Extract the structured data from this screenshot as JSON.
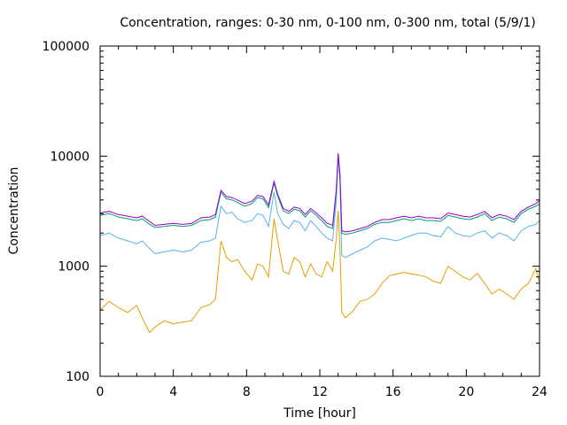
{
  "chart_data": {
    "type": "line",
    "title": "Concentration, ranges: 0-30 nm, 0-100 nm, 0-300 nm, total (5/9/1)",
    "xlabel": "Time [hour]",
    "ylabel": "Concentration",
    "xlim": [
      0,
      24
    ],
    "ylim": [
      100,
      100000
    ],
    "yscale": "log",
    "grid": false,
    "legend": "none",
    "x_ticks": [
      0,
      4,
      8,
      12,
      16,
      20,
      24
    ],
    "x_tick_labels": [
      "0",
      "4",
      "8",
      "12",
      "16",
      "20",
      "24"
    ],
    "y_ticks": [
      100,
      1000,
      10000,
      100000
    ],
    "y_tick_labels": [
      "100",
      "1000",
      "10000",
      "100000"
    ],
    "x": [
      0,
      0.5,
      1,
      1.5,
      2,
      2.3,
      2.7,
      3,
      3.5,
      4,
      4.5,
      5,
      5.5,
      6,
      6.3,
      6.6,
      6.9,
      7.2,
      7.5,
      7.9,
      8.3,
      8.6,
      8.9,
      9.2,
      9.5,
      9.7,
      10,
      10.3,
      10.6,
      10.9,
      11.2,
      11.5,
      11.8,
      12.1,
      12.4,
      12.7,
      12.9,
      13.0,
      13.1,
      13.2,
      13.4,
      13.8,
      14.2,
      14.6,
      15.0,
      15.4,
      15.8,
      16.2,
      16.6,
      17.0,
      17.4,
      17.8,
      18.2,
      18.6,
      19.0,
      19.4,
      19.8,
      20.2,
      20.6,
      21.0,
      21.4,
      21.8,
      22.2,
      22.6,
      23.0,
      23.4,
      23.8,
      24
    ],
    "series": [
      {
        "name": "0-30 nm",
        "color": "#e69f00",
        "values": [
          400,
          480,
          420,
          380,
          440,
          340,
          250,
          280,
          320,
          300,
          310,
          320,
          420,
          450,
          500,
          1700,
          1200,
          1100,
          1150,
          900,
          750,
          1050,
          1000,
          800,
          2700,
          1700,
          900,
          850,
          1200,
          1100,
          800,
          1050,
          850,
          800,
          1100,
          900,
          1800,
          3200,
          1500,
          380,
          340,
          390,
          480,
          500,
          560,
          700,
          820,
          850,
          880,
          850,
          830,
          800,
          730,
          700,
          1000,
          900,
          800,
          750,
          860,
          700,
          560,
          620,
          560,
          500,
          620,
          700,
          950,
          700
        ]
      },
      {
        "name": "0-100 nm",
        "color": "#56b4e9",
        "values": [
          1900,
          2000,
          1800,
          1700,
          1600,
          1700,
          1450,
          1300,
          1350,
          1400,
          1350,
          1400,
          1650,
          1700,
          1800,
          3500,
          3000,
          3100,
          2700,
          2500,
          2600,
          3000,
          2900,
          2300,
          4700,
          3000,
          2400,
          2200,
          2600,
          2500,
          2100,
          2600,
          2300,
          2000,
          1800,
          1700,
          4000,
          9800,
          6000,
          1250,
          1200,
          1300,
          1400,
          1500,
          1700,
          1800,
          1750,
          1700,
          1800,
          1900,
          2000,
          2000,
          1900,
          1850,
          2300,
          2000,
          1900,
          1850,
          2000,
          2100,
          1800,
          2000,
          1900,
          1700,
          2100,
          2300,
          2400,
          2600
        ]
      },
      {
        "name": "0-300 nm",
        "color": "#009e73",
        "values": [
          2900,
          3000,
          2800,
          2700,
          2600,
          2700,
          2400,
          2250,
          2300,
          2350,
          2300,
          2350,
          2600,
          2650,
          2800,
          4700,
          4100,
          4000,
          3800,
          3500,
          3700,
          4200,
          4100,
          3400,
          5700,
          4300,
          3200,
          3000,
          3300,
          3200,
          2800,
          3200,
          2900,
          2600,
          2300,
          2200,
          4800,
          10300,
          6800,
          2000,
          1950,
          2000,
          2100,
          2200,
          2400,
          2500,
          2500,
          2600,
          2700,
          2600,
          2700,
          2600,
          2600,
          2550,
          2900,
          2800,
          2700,
          2650,
          2800,
          3000,
          2600,
          2800,
          2700,
          2500,
          3000,
          3300,
          3500,
          3700
        ]
      },
      {
        "name": "total",
        "color": "#9400d3",
        "values": [
          3050,
          3150,
          2950,
          2850,
          2750,
          2850,
          2550,
          2350,
          2400,
          2450,
          2400,
          2450,
          2750,
          2800,
          2950,
          4900,
          4300,
          4200,
          4000,
          3700,
          3900,
          4400,
          4300,
          3600,
          5900,
          4500,
          3350,
          3150,
          3450,
          3350,
          2950,
          3350,
          3050,
          2750,
          2450,
          2350,
          5000,
          10600,
          7000,
          2100,
          2050,
          2100,
          2200,
          2300,
          2500,
          2650,
          2650,
          2750,
          2850,
          2750,
          2850,
          2750,
          2750,
          2700,
          3050,
          2950,
          2850,
          2800,
          2950,
          3150,
          2750,
          2950,
          2850,
          2650,
          3150,
          3450,
          3700,
          3950
        ]
      }
    ]
  }
}
